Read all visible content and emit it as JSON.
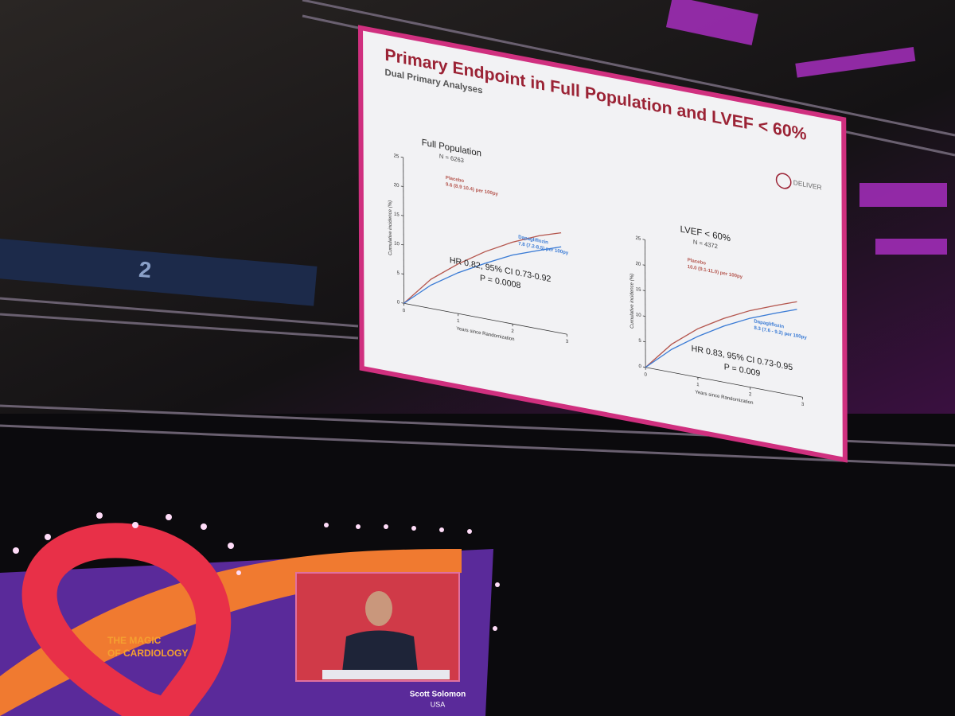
{
  "slide": {
    "title": "Primary Endpoint in Full Population and LVEF < 60%",
    "subtitle": "Dual Primary Analyses",
    "logo": "DELIVER",
    "panels": [
      {
        "heading": "Full Population",
        "n": "N = 6263",
        "chart": {
          "type": "line",
          "xlabel": "Years since Randomization",
          "ylabel": "Cumulative incidence (%)",
          "xlim": [
            0,
            3
          ],
          "ylim": [
            0,
            25
          ],
          "xticks": [
            0,
            1,
            2,
            3
          ],
          "yticks": [
            0,
            5,
            10,
            15,
            20,
            25
          ],
          "x": [
            0,
            0.5,
            1,
            1.5,
            2,
            2.5,
            2.9
          ],
          "series": [
            {
              "name": "Placebo",
              "rate": "9.6 (8.9 10.4) per 100py",
              "color": "#b5574f",
              "values": [
                0,
                5,
                8.5,
                11.5,
                14,
                16,
                17.2
              ]
            },
            {
              "name": "Dapagliflozin",
              "rate": "7.8 (7.2-8.5) per 100py",
              "color": "#3a7bd5",
              "values": [
                0,
                4,
                7,
                9.5,
                11.8,
                13.5,
                14.8
              ]
            }
          ],
          "hr": "HR 0.82, 95% CI 0.73-0.92",
          "p": "P = 0.0008"
        }
      },
      {
        "heading": "LVEF < 60%",
        "n": "N = 4372",
        "chart": {
          "type": "line",
          "xlabel": "Years since Randomization",
          "ylabel": "Cumulative incidence (%)",
          "xlim": [
            0,
            3
          ],
          "ylim": [
            0,
            25
          ],
          "xticks": [
            0,
            1,
            2,
            3
          ],
          "yticks": [
            0,
            5,
            10,
            15,
            20,
            25
          ],
          "x": [
            0,
            0.5,
            1,
            1.5,
            2,
            2.5,
            2.9
          ],
          "series": [
            {
              "name": "Placebo",
              "rate": "10.0 (9.1-11.0) per 100py",
              "color": "#b5574f",
              "values": [
                0,
                5.5,
                9.5,
                12.5,
                15,
                17,
                18.5
              ]
            },
            {
              "name": "Dapagliflozin",
              "rate": "8.3 (7.6 - 9.2) per 100py",
              "color": "#3a7bd5",
              "values": [
                0,
                4.5,
                8,
                11,
                13.5,
                15.5,
                17
              ]
            }
          ],
          "hr": "HR 0.83, 95% CI 0.73-0.95",
          "p": "P = 0.009"
        }
      }
    ]
  },
  "stage": {
    "tagline": [
      "THE MAGIC",
      "OF CARDIOLOGY"
    ],
    "speaker": "Scott Solomon",
    "country": "USA",
    "hall_sign": "2"
  }
}
